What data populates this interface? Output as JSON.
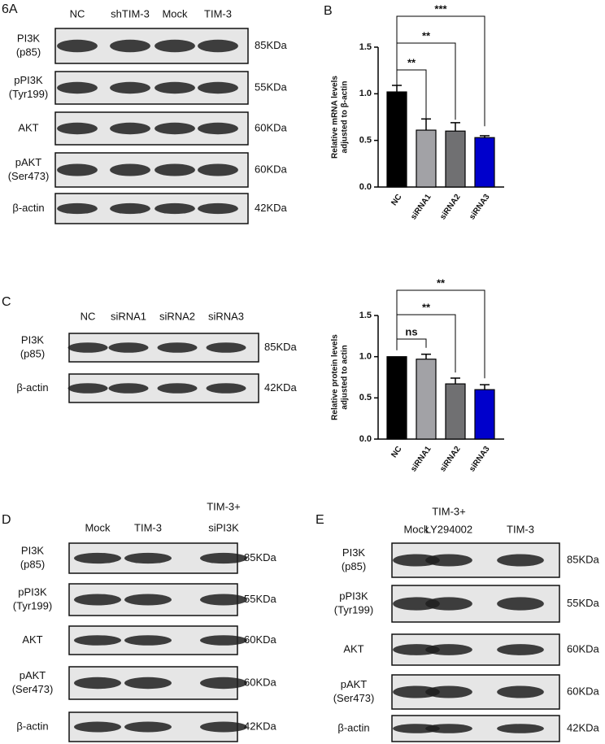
{
  "panel_a": {
    "panel_label": "6A",
    "lanes": [
      [
        "NC"
      ],
      [
        "shTIM-3"
      ],
      [
        "Mock"
      ],
      [
        "TIM-3"
      ]
    ],
    "rows": [
      {
        "label": [
          "PI3K",
          "(p85)"
        ],
        "kda": "85KDa"
      },
      {
        "label": [
          "pPI3K",
          "(Tyr199)"
        ],
        "kda": "55KDa"
      },
      {
        "label": [
          "AKT"
        ],
        "kda": "60KDa"
      },
      {
        "label": [
          "pAKT",
          "(Ser473)"
        ],
        "kda": "60KDa"
      },
      {
        "label": [
          "β-actin"
        ],
        "kda": "42KDa"
      }
    ]
  },
  "panel_c": {
    "panel_label": "C",
    "lanes": [
      [
        "NC"
      ],
      [
        "siRNA1"
      ],
      [
        "siRNA2"
      ],
      [
        "siRNA3"
      ]
    ],
    "rows": [
      {
        "label": [
          "PI3K",
          "(p85)"
        ],
        "kda": "85KDa"
      },
      {
        "label": [
          "β-actin"
        ],
        "kda": "42KDa"
      }
    ]
  },
  "panel_d": {
    "panel_label": "D",
    "lanes": [
      [
        "Mock"
      ],
      [
        "TIM-3"
      ],
      [
        "TIM-3+",
        "siPI3K"
      ]
    ],
    "rows": [
      {
        "label": [
          "PI3K",
          "(p85)"
        ],
        "kda": "85KDa"
      },
      {
        "label": [
          "pPI3K",
          "(Tyr199)"
        ],
        "kda": "55KDa"
      },
      {
        "label": [
          "AKT"
        ],
        "kda": "60KDa"
      },
      {
        "label": [
          "pAKT",
          "(Ser473)"
        ],
        "kda": "60KDa"
      },
      {
        "label": [
          "β-actin"
        ],
        "kda": "42KDa"
      }
    ]
  },
  "panel_e": {
    "panel_label": "E",
    "lanes": [
      [
        "Mock"
      ],
      [
        "TIM-3+",
        "LY294002"
      ],
      [
        "TIM-3"
      ]
    ],
    "rows": [
      {
        "label": [
          "PI3K",
          "(p85)"
        ],
        "kda": "85KDa"
      },
      {
        "label": [
          "pPI3K",
          "(Tyr199)"
        ],
        "kda": "55KDa"
      },
      {
        "label": [
          "AKT"
        ],
        "kda": "60KDa"
      },
      {
        "label": [
          "pAKT",
          "(Ser473)"
        ],
        "kda": "60KDa"
      },
      {
        "label": [
          "β-actin"
        ],
        "kda": "42KDa"
      }
    ]
  },
  "chart_data": [
    {
      "type": "bar",
      "panel_label": "B",
      "y_label": [
        "Relative mRNA levels",
        "adjusted to β-actin"
      ],
      "categories": [
        "NC",
        "siRNA1",
        "siRNA2",
        "siRNA3"
      ],
      "values": [
        1.02,
        0.61,
        0.6,
        0.53
      ],
      "errors": [
        0.07,
        0.12,
        0.09,
        0.02
      ],
      "colors": [
        "#000000",
        "#a2a2a6",
        "#707072",
        "#0000cc"
      ],
      "ylim": [
        0,
        1.5
      ],
      "yticks": [
        {
          "value": 0,
          "label": "0.0"
        },
        0.5,
        {
          "value": 1,
          "label": "1.0"
        },
        1.5
      ],
      "significance": [
        "**",
        "**",
        "***"
      ]
    },
    {
      "type": "bar",
      "y_label": [
        "Relative protein levels",
        "adjusted to actin"
      ],
      "categories": [
        "NC",
        "siRNA1",
        "siRNA2",
        "siRNA3"
      ],
      "values": [
        1.0,
        0.97,
        0.67,
        0.6
      ],
      "errors": [
        null,
        0.06,
        0.07,
        0.06
      ],
      "colors": [
        "#000000",
        "#a2a2a6",
        "#707072",
        "#0000cc"
      ],
      "ylim": [
        0,
        1.5
      ],
      "yticks": [
        {
          "value": 0,
          "label": "0.0"
        },
        0.5,
        {
          "value": 1,
          "label": "1.0"
        },
        1.5
      ],
      "significance": [
        "ns",
        "**",
        "**"
      ]
    }
  ]
}
